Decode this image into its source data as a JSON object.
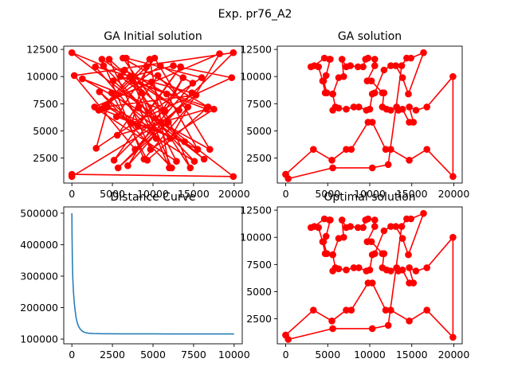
{
  "figure": {
    "suptitle": "Exp. pr76_A2"
  },
  "colors": {
    "route": "#ff0000",
    "curve": "#1f77b4",
    "axis": "#000000"
  },
  "chart_data": [
    {
      "id": "init",
      "type": "line",
      "title": "GA Initial solution",
      "xlim": [
        -1000,
        21000
      ],
      "ylim": [
        200,
        12800
      ],
      "xticks": [
        0,
        5000,
        10000,
        15000,
        20000
      ],
      "yticks": [
        2500,
        5000,
        7500,
        10000,
        12500
      ],
      "marker": "circle",
      "series": [
        {
          "x": [
            0,
            19900,
            0,
            3900,
            15100,
            4400,
            3000,
            16000,
            6700,
            12300,
            3400,
            8100,
            13400,
            5200,
            11300,
            1300,
            17000,
            10200,
            5500,
            13900,
            3600,
            7200,
            14600,
            9800,
            2800,
            18200,
            12100,
            4900,
            9300,
            16800,
            6300,
            11900,
            5700,
            19900,
            300,
            7800,
            14900,
            10900,
            3300,
            12900,
            8600,
            6000,
            17500,
            9700,
            4600,
            11500,
            13700,
            6900,
            14800,
            2900,
            10400,
            8200,
            16300,
            5100,
            12500,
            19700,
            7400,
            9200,
            4300,
            15500,
            11700,
            6500,
            13200,
            3700,
            8900,
            14300,
            10600,
            5600,
            16600,
            7500,
            12000,
            9600,
            4000,
            15300,
            11000,
            0
          ],
          "y": [
            1000,
            800,
            12200,
            11000,
            2200,
            7200,
            3400,
            9900,
            11700,
            1600,
            8600,
            5500,
            10900,
            2300,
            6900,
            9800,
            3300,
            11700,
            6300,
            4000,
            7000,
            10000,
            1600,
            9500,
            7200,
            12100,
            4300,
            8500,
            2300,
            7200,
            11700,
            5800,
            1600,
            12200,
            10100,
            3300,
            9400,
            11000,
            6900,
            2200,
            8500,
            10000,
            7000,
            3300,
            11600,
            6800,
            9900,
            1800,
            8500,
            10900,
            4300,
            7100,
            2400,
            9600,
            11000,
            9900,
            5700,
            10900,
            7300,
            3300,
            8400,
            10600,
            6900,
            11600,
            2400,
            7200,
            10100,
            4600,
            7000,
            9600,
            1600,
            11600,
            7200,
            8300,
            5800,
            800
          ]
        }
      ]
    },
    {
      "id": "ga",
      "type": "line",
      "title": "GA solution",
      "xlim": [
        -1000,
        21000
      ],
      "ylim": [
        200,
        12800
      ],
      "xticks": [
        0,
        5000,
        10000,
        15000,
        20000
      ],
      "yticks": [
        2500,
        5000,
        7500,
        10000,
        12500
      ],
      "marker": "circle",
      "series": [
        {
          "x": [
            0,
            3300,
            5500,
            7200,
            7800,
            9800,
            10300,
            11900,
            12500,
            14700,
            16800,
            19900,
            19900,
            16800,
            15500,
            14700,
            15200,
            14700,
            13900,
            13400,
            13200,
            12500,
            12000,
            11500,
            11700,
            11500,
            10200,
            9700,
            10600,
            10600,
            9800,
            9500,
            9200,
            8600,
            7700,
            7200,
            6700,
            6900,
            6300,
            5600,
            4900,
            4500,
            4800,
            5300,
            5200,
            4600,
            3400,
            3000,
            3900,
            4400,
            4700,
            5600,
            5900,
            5600,
            6300,
            7200,
            8100,
            8700,
            9600,
            10000,
            10300,
            10600,
            11700,
            12500,
            13100,
            13900,
            14600,
            16400,
            14900,
            14400,
            13800,
            12200,
            10300,
            5600,
            300,
            0
          ],
          "y": [
            1000,
            3300,
            2300,
            3300,
            3300,
            5800,
            5800,
            3300,
            3300,
            2300,
            3300,
            800,
            10000,
            7200,
            6900,
            7200,
            5800,
            5800,
            7000,
            6900,
            7200,
            6900,
            7000,
            7200,
            8500,
            8500,
            9600,
            9600,
            11000,
            11600,
            11700,
            11600,
            10900,
            10900,
            11000,
            10900,
            11600,
            10000,
            9900,
            8400,
            8500,
            9600,
            10100,
            11600,
            11600,
            11700,
            11000,
            10900,
            10900,
            9600,
            8500,
            8400,
            7200,
            6900,
            7100,
            7000,
            7200,
            7200,
            6900,
            7000,
            8400,
            8500,
            10600,
            11000,
            11000,
            9900,
            8400,
            12200,
            11700,
            11700,
            11000,
            1900,
            1600,
            1600,
            600,
            1000
          ]
        }
      ]
    },
    {
      "id": "curve",
      "type": "line",
      "title": "Distance Curve",
      "xlim": [
        -500,
        10500
      ],
      "ylim": [
        85000,
        520000
      ],
      "xticks": [
        0,
        2500,
        5000,
        7500,
        10000
      ],
      "yticks": [
        100000,
        200000,
        300000,
        400000,
        500000
      ],
      "series": [
        {
          "x": [
            0,
            10,
            30,
            60,
            100,
            150,
            200,
            260,
            330,
            420,
            520,
            650,
            800,
            1000,
            1300,
            1700,
            2200,
            3000,
            4000,
            5000,
            6000,
            7000,
            8000,
            9000,
            10000
          ],
          "y": [
            500000,
            430000,
            350000,
            290000,
            250000,
            215000,
            190000,
            168000,
            152000,
            140000,
            131000,
            125000,
            121000,
            119000,
            117500,
            117000,
            116800,
            116600,
            116500,
            116500,
            116400,
            116400,
            116400,
            116400,
            116400
          ]
        }
      ]
    },
    {
      "id": "opt",
      "type": "line",
      "title": "Optimal solution",
      "xlim": [
        -1000,
        21000
      ],
      "ylim": [
        200,
        12800
      ],
      "xticks": [
        0,
        5000,
        10000,
        15000,
        20000
      ],
      "yticks": [
        2500,
        5000,
        7500,
        10000,
        12500
      ],
      "marker": "circle",
      "series": [
        {
          "x": [
            0,
            3300,
            5500,
            7200,
            7800,
            9800,
            10300,
            11900,
            12500,
            14700,
            16800,
            19900,
            19900,
            16800,
            15500,
            14700,
            15200,
            14700,
            13900,
            13400,
            13200,
            12500,
            12000,
            11500,
            11700,
            11500,
            10200,
            9700,
            10600,
            10600,
            9800,
            9500,
            9200,
            8600,
            7700,
            7200,
            6700,
            6900,
            6300,
            5600,
            4900,
            4500,
            4800,
            5300,
            5200,
            4600,
            3400,
            3000,
            3900,
            4400,
            4700,
            5600,
            5900,
            5600,
            6300,
            7200,
            8100,
            8700,
            9600,
            10000,
            10300,
            10600,
            11700,
            12500,
            13100,
            13900,
            14600,
            16400,
            14900,
            14400,
            13800,
            12200,
            10300,
            5600,
            300,
            0
          ],
          "y": [
            1000,
            3300,
            2300,
            3300,
            3300,
            5800,
            5800,
            3300,
            3300,
            2300,
            3300,
            800,
            10000,
            7200,
            6900,
            7200,
            5800,
            5800,
            7000,
            6900,
            7200,
            6900,
            7000,
            7200,
            8500,
            8500,
            9600,
            9600,
            11000,
            11600,
            11700,
            11600,
            10900,
            10900,
            11000,
            10900,
            11600,
            10000,
            9900,
            8400,
            8500,
            9600,
            10100,
            11600,
            11600,
            11700,
            11000,
            10900,
            10900,
            9600,
            8500,
            8400,
            7200,
            6900,
            7100,
            7000,
            7200,
            7200,
            6900,
            7000,
            8400,
            8500,
            10600,
            11000,
            11000,
            9900,
            8400,
            12200,
            11700,
            11700,
            11000,
            1900,
            1600,
            1600,
            600,
            1000
          ]
        }
      ]
    }
  ]
}
